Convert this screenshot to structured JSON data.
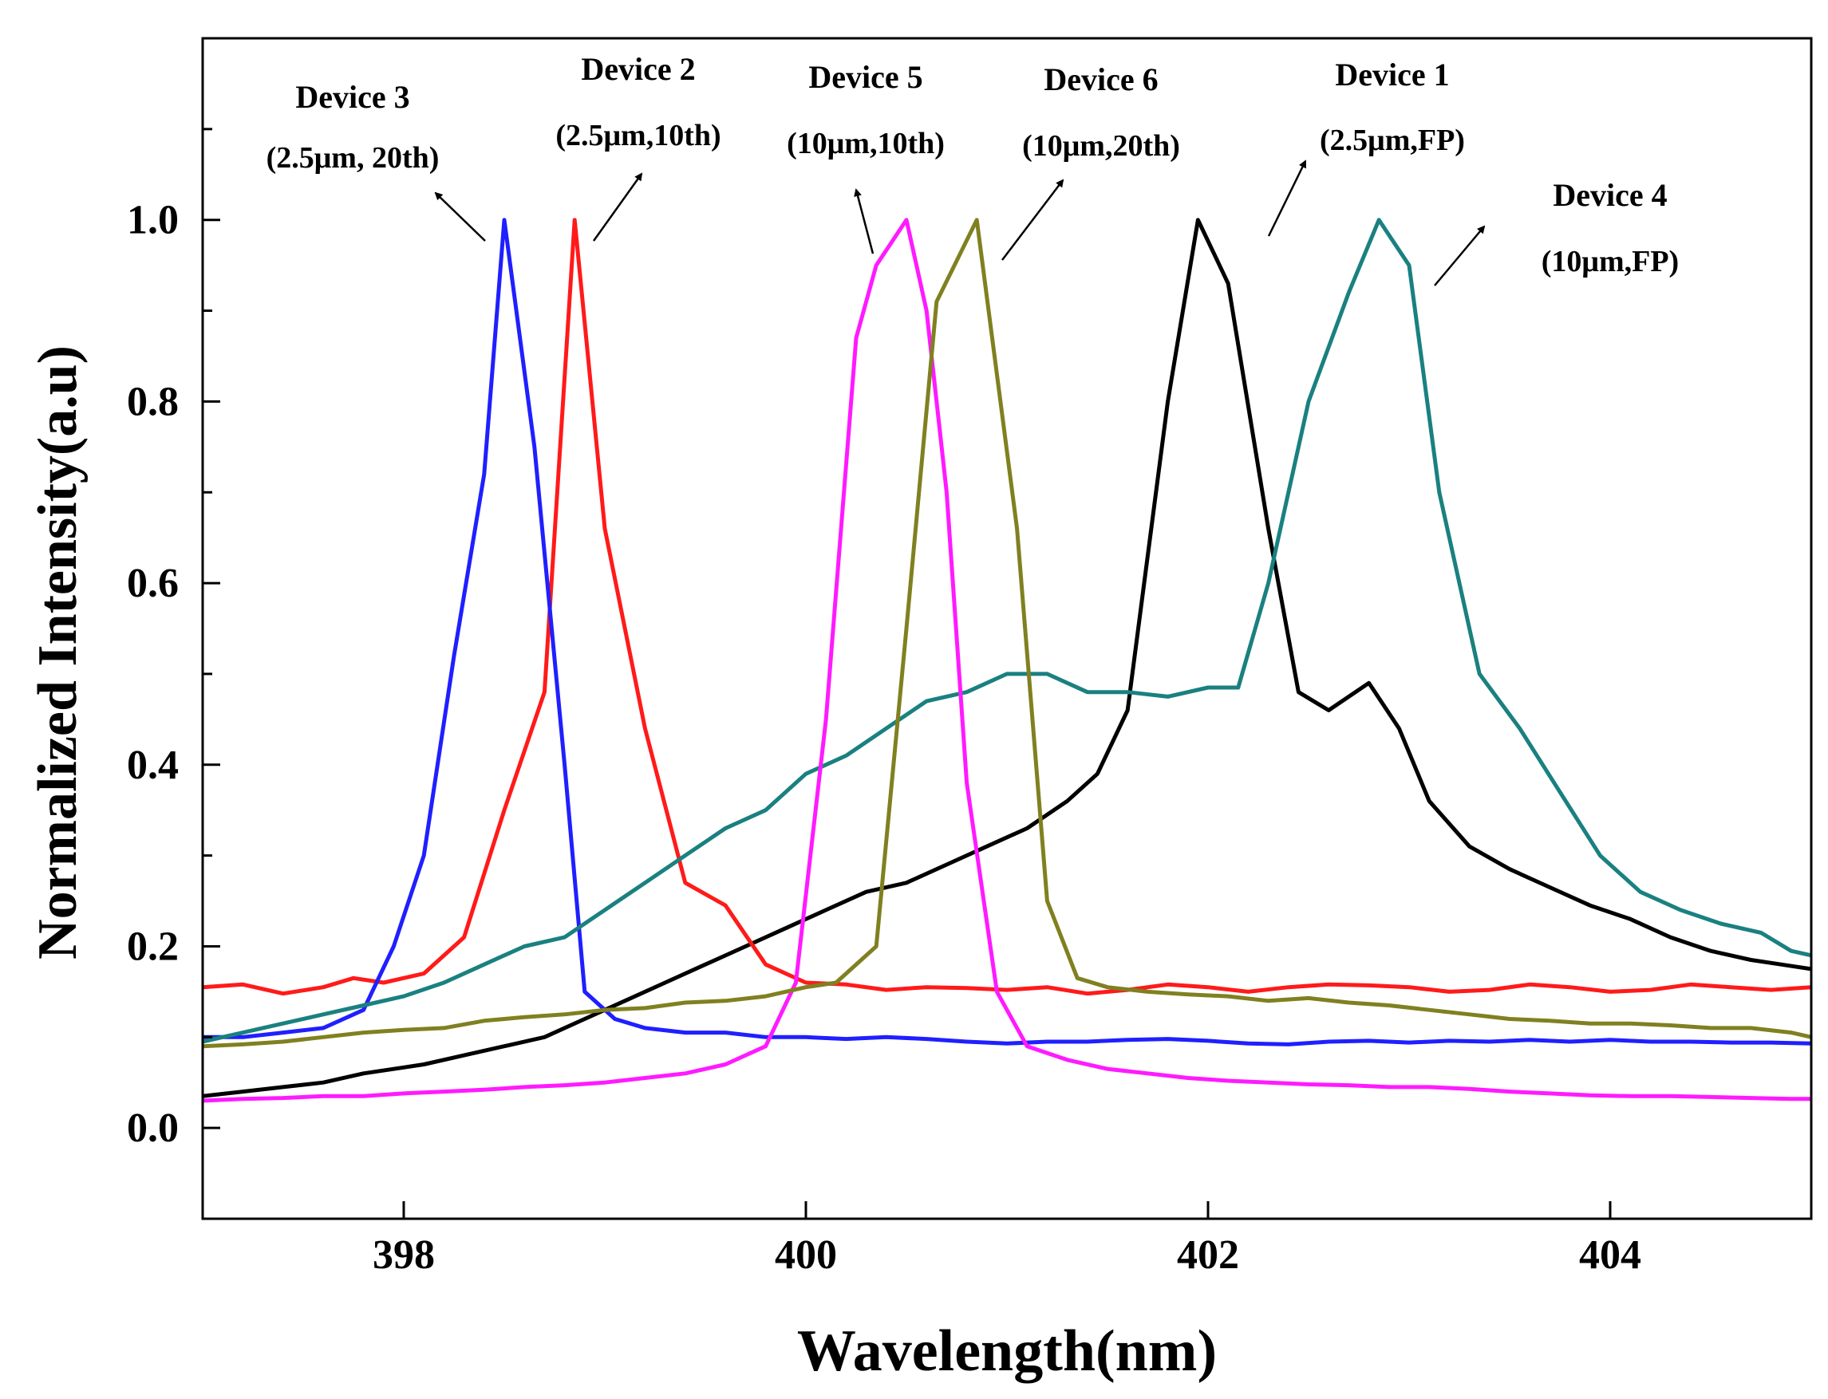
{
  "chart_data": {
    "type": "line",
    "title": "",
    "xlabel": "Wavelength(nm)",
    "ylabel": "Normalized Intensity(a.u)",
    "xlim": [
      397,
      405
    ],
    "ylim": [
      -0.1,
      1.2
    ],
    "x_ticks": [
      398,
      400,
      402,
      404
    ],
    "x_tick_labels": [
      "398",
      "400",
      "402",
      "404"
    ],
    "y_ticks": [
      0.0,
      0.2,
      0.4,
      0.6,
      0.8,
      1.0
    ],
    "y_tick_labels": [
      "0.0",
      "0.2",
      "0.4",
      "0.6",
      "0.8",
      "1.0"
    ],
    "grid": false,
    "series": [
      {
        "name": "Device 1",
        "color": "#000000",
        "x": [
          397.0,
          397.2,
          397.4,
          397.6,
          397.8,
          397.95,
          398.1,
          398.3,
          398.5,
          398.7,
          398.9,
          399.1,
          399.3,
          399.5,
          399.7,
          399.9,
          400.1,
          400.3,
          400.5,
          400.7,
          400.9,
          401.1,
          401.3,
          401.45,
          401.6,
          401.8,
          401.95,
          402.1,
          402.3,
          402.45,
          402.6,
          402.8,
          402.95,
          403.1,
          403.3,
          403.5,
          403.7,
          403.9,
          404.1,
          404.3,
          404.5,
          404.7,
          404.85,
          405.0
        ],
        "y": [
          0.035,
          0.04,
          0.045,
          0.05,
          0.06,
          0.065,
          0.07,
          0.08,
          0.09,
          0.1,
          0.12,
          0.14,
          0.16,
          0.18,
          0.2,
          0.22,
          0.24,
          0.26,
          0.27,
          0.29,
          0.31,
          0.33,
          0.36,
          0.39,
          0.46,
          0.8,
          1.0,
          0.93,
          0.66,
          0.48,
          0.46,
          0.49,
          0.44,
          0.36,
          0.31,
          0.285,
          0.265,
          0.245,
          0.23,
          0.21,
          0.195,
          0.185,
          0.18,
          0.175
        ]
      },
      {
        "name": "Device 2",
        "color": "#ff1a1a",
        "x": [
          397.0,
          397.2,
          397.4,
          397.6,
          397.75,
          397.9,
          398.1,
          398.3,
          398.5,
          398.7,
          398.85,
          399.0,
          399.2,
          399.4,
          399.6,
          399.8,
          400.0,
          400.2,
          400.4,
          400.6,
          400.8,
          401.0,
          401.2,
          401.4,
          401.6,
          401.8,
          402.0,
          402.2,
          402.4,
          402.6,
          402.8,
          403.0,
          403.2,
          403.4,
          403.6,
          403.8,
          404.0,
          404.2,
          404.4,
          404.6,
          404.8,
          405.0
        ],
        "y": [
          0.155,
          0.158,
          0.148,
          0.155,
          0.165,
          0.16,
          0.17,
          0.21,
          0.35,
          0.48,
          1.0,
          0.66,
          0.44,
          0.27,
          0.245,
          0.18,
          0.16,
          0.158,
          0.152,
          0.155,
          0.154,
          0.152,
          0.155,
          0.148,
          0.152,
          0.158,
          0.155,
          0.15,
          0.155,
          0.158,
          0.157,
          0.155,
          0.15,
          0.152,
          0.158,
          0.155,
          0.15,
          0.152,
          0.158,
          0.155,
          0.152,
          0.155
        ]
      },
      {
        "name": "Device 3",
        "color": "#1f1fff",
        "x": [
          397.0,
          397.2,
          397.4,
          397.6,
          397.8,
          397.95,
          398.1,
          398.25,
          398.4,
          398.5,
          398.65,
          398.8,
          398.9,
          399.05,
          399.2,
          399.4,
          399.6,
          399.8,
          400.0,
          400.2,
          400.4,
          400.6,
          400.8,
          401.0,
          401.2,
          401.4,
          401.6,
          401.8,
          402.0,
          402.2,
          402.4,
          402.6,
          402.8,
          403.0,
          403.2,
          403.4,
          403.6,
          403.8,
          404.0,
          404.2,
          404.4,
          404.6,
          404.8,
          405.0
        ],
        "y": [
          0.1,
          0.1,
          0.105,
          0.11,
          0.13,
          0.2,
          0.3,
          0.52,
          0.72,
          1.0,
          0.75,
          0.4,
          0.15,
          0.12,
          0.11,
          0.105,
          0.105,
          0.1,
          0.1,
          0.098,
          0.1,
          0.098,
          0.095,
          0.093,
          0.095,
          0.095,
          0.097,
          0.098,
          0.096,
          0.093,
          0.092,
          0.095,
          0.096,
          0.094,
          0.096,
          0.095,
          0.097,
          0.095,
          0.097,
          0.095,
          0.095,
          0.094,
          0.094,
          0.093
        ]
      },
      {
        "name": "Device 4",
        "color": "#1a8080",
        "x": [
          397.0,
          397.2,
          397.4,
          397.6,
          397.8,
          398.0,
          398.2,
          398.4,
          398.6,
          398.8,
          399.0,
          399.2,
          399.4,
          399.6,
          399.8,
          400.0,
          400.2,
          400.4,
          400.6,
          400.8,
          401.0,
          401.2,
          401.4,
          401.6,
          401.8,
          402.0,
          402.15,
          402.3,
          402.5,
          402.7,
          402.85,
          403.0,
          403.15,
          403.35,
          403.55,
          403.75,
          403.95,
          404.15,
          404.35,
          404.55,
          404.75,
          404.9,
          405.0
        ],
        "y": [
          0.095,
          0.105,
          0.115,
          0.125,
          0.135,
          0.145,
          0.16,
          0.18,
          0.2,
          0.21,
          0.24,
          0.27,
          0.3,
          0.33,
          0.35,
          0.39,
          0.41,
          0.44,
          0.47,
          0.48,
          0.5,
          0.5,
          0.48,
          0.48,
          0.475,
          0.485,
          0.485,
          0.6,
          0.8,
          0.92,
          1.0,
          0.95,
          0.7,
          0.5,
          0.44,
          0.37,
          0.3,
          0.26,
          0.24,
          0.225,
          0.215,
          0.195,
          0.19
        ]
      },
      {
        "name": "Device 5",
        "color": "#ff1aff",
        "x": [
          397.0,
          397.2,
          397.4,
          397.6,
          397.8,
          398.0,
          398.2,
          398.4,
          398.6,
          398.8,
          399.0,
          399.2,
          399.4,
          399.6,
          399.8,
          399.95,
          400.1,
          400.25,
          400.35,
          400.5,
          400.6,
          400.7,
          400.8,
          400.95,
          401.1,
          401.3,
          401.5,
          401.7,
          401.9,
          402.1,
          402.3,
          402.5,
          402.7,
          402.9,
          403.1,
          403.3,
          403.5,
          403.7,
          403.9,
          404.1,
          404.3,
          404.5,
          404.7,
          404.9,
          405.0
        ],
        "y": [
          0.03,
          0.032,
          0.033,
          0.035,
          0.035,
          0.038,
          0.04,
          0.042,
          0.045,
          0.047,
          0.05,
          0.055,
          0.06,
          0.07,
          0.09,
          0.16,
          0.45,
          0.87,
          0.95,
          1.0,
          0.9,
          0.7,
          0.38,
          0.15,
          0.09,
          0.075,
          0.065,
          0.06,
          0.055,
          0.052,
          0.05,
          0.048,
          0.047,
          0.045,
          0.045,
          0.043,
          0.04,
          0.038,
          0.036,
          0.035,
          0.035,
          0.034,
          0.033,
          0.032,
          0.032
        ]
      },
      {
        "name": "Device 6",
        "color": "#808021",
        "x": [
          397.0,
          397.2,
          397.4,
          397.6,
          397.8,
          398.0,
          398.2,
          398.4,
          398.6,
          398.8,
          399.0,
          399.2,
          399.4,
          399.6,
          399.8,
          400.0,
          400.15,
          400.35,
          400.5,
          400.65,
          400.85,
          401.05,
          401.2,
          401.35,
          401.5,
          401.7,
          401.9,
          402.1,
          402.3,
          402.5,
          402.7,
          402.9,
          403.1,
          403.3,
          403.5,
          403.7,
          403.9,
          404.1,
          404.3,
          404.5,
          404.7,
          404.9,
          405.0
        ],
        "y": [
          0.09,
          0.092,
          0.095,
          0.1,
          0.105,
          0.108,
          0.11,
          0.118,
          0.122,
          0.125,
          0.13,
          0.132,
          0.138,
          0.14,
          0.145,
          0.155,
          0.16,
          0.2,
          0.55,
          0.91,
          1.0,
          0.66,
          0.25,
          0.165,
          0.155,
          0.15,
          0.147,
          0.145,
          0.14,
          0.143,
          0.138,
          0.135,
          0.13,
          0.125,
          0.12,
          0.118,
          0.115,
          0.115,
          0.113,
          0.11,
          0.11,
          0.105,
          0.1
        ]
      }
    ],
    "annotations": [
      {
        "name": "Device 3",
        "params": "(2.5μm, 20th)"
      },
      {
        "name": "Device 2",
        "params": "(2.5μm,10th)"
      },
      {
        "name": "Device 5",
        "params": "(10μm,10th)"
      },
      {
        "name": "Device 6",
        "params": "(10μm,20th)"
      },
      {
        "name": "Device 1",
        "params": "(2.5μm,FP)"
      },
      {
        "name": "Device 4",
        "params": "(10μm,FP)"
      }
    ]
  }
}
